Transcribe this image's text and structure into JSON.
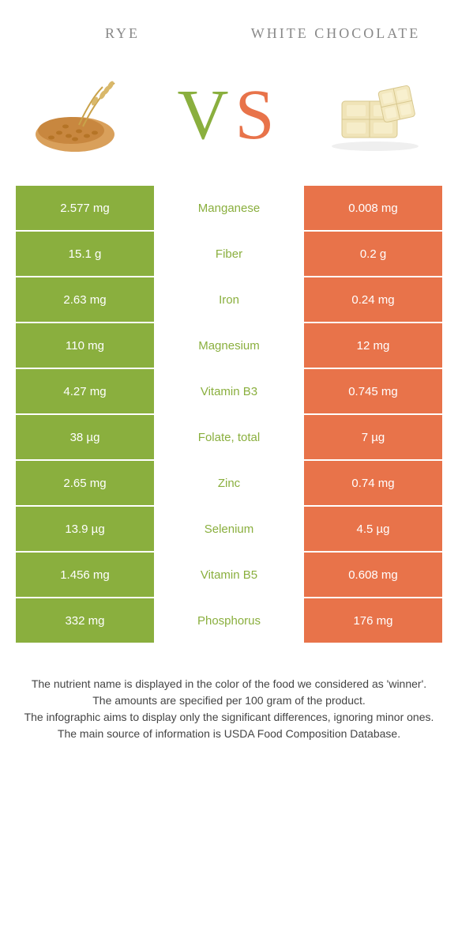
{
  "header": {
    "left_title": "Rye",
    "right_title": "White chocolate"
  },
  "vs": {
    "v": "V",
    "s": "S"
  },
  "colors": {
    "left": "#8aaf3e",
    "right": "#e8734a",
    "nutrient_text": "#8aaf3e",
    "body_text": "#444"
  },
  "table": {
    "rows": [
      {
        "left": "2.577 mg",
        "mid": "Manganese",
        "right": "0.008 mg"
      },
      {
        "left": "15.1 g",
        "mid": "Fiber",
        "right": "0.2 g"
      },
      {
        "left": "2.63 mg",
        "mid": "Iron",
        "right": "0.24 mg"
      },
      {
        "left": "110 mg",
        "mid": "Magnesium",
        "right": "12 mg"
      },
      {
        "left": "4.27 mg",
        "mid": "Vitamin B3",
        "right": "0.745 mg"
      },
      {
        "left": "38 µg",
        "mid": "Folate, total",
        "right": "7 µg"
      },
      {
        "left": "2.65 mg",
        "mid": "Zinc",
        "right": "0.74 mg"
      },
      {
        "left": "13.9 µg",
        "mid": "Selenium",
        "right": "4.5 µg"
      },
      {
        "left": "1.456 mg",
        "mid": "Vitamin B5",
        "right": "0.608 mg"
      },
      {
        "left": "332 mg",
        "mid": "Phosphorus",
        "right": "176 mg"
      }
    ]
  },
  "footer": {
    "line1": "The nutrient name is displayed in the color of the food we considered as 'winner'.",
    "line2": "The amounts are specified per 100 gram of the product.",
    "line3": "The infographic aims to display only the significant differences, ignoring minor ones.",
    "line4": "The main source of information is USDA Food Composition Database."
  }
}
